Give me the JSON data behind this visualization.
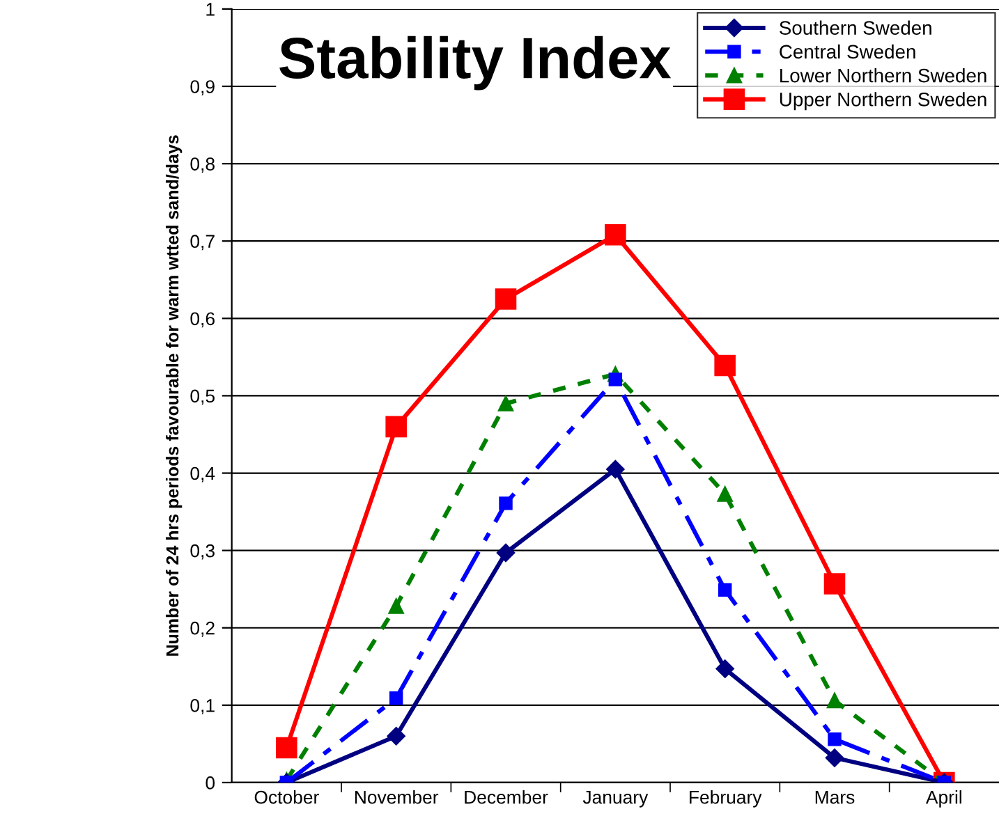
{
  "chart_data": {
    "type": "line",
    "title": "Stability Index",
    "ylabel": "Number of 24 hrs periods favourable for warm wtted sand/days",
    "categories": [
      "October",
      "November",
      "December",
      "January",
      "February",
      "Mars",
      "April"
    ],
    "series": [
      {
        "name": "Southern Sweden",
        "color": "#000080",
        "marker": "diamond",
        "line_style": "solid",
        "values": [
          0,
          0.06,
          0.297,
          0.405,
          0.147,
          0.032,
          0
        ]
      },
      {
        "name": "Central Sweden",
        "color": "#0000ff",
        "marker": "square",
        "line_style": "dashed",
        "values": [
          0,
          0.109,
          0.361,
          0.521,
          0.249,
          0.056,
          0
        ]
      },
      {
        "name": "Lower Northern Sweden",
        "color": "#008000",
        "marker": "triangle",
        "line_style": "dotted",
        "values": [
          0.003,
          0.228,
          0.49,
          0.528,
          0.373,
          0.106,
          0
        ]
      },
      {
        "name": "Upper Northern Sweden",
        "color": "#ff0000",
        "marker": "square",
        "line_style": "solid",
        "values": [
          0.045,
          0.46,
          0.625,
          0.708,
          0.539,
          0.257,
          0
        ]
      }
    ],
    "ylim": [
      0,
      1
    ],
    "yticks": [
      0,
      {
        "value": 0.1,
        "label": "0,1"
      },
      {
        "value": 0.2,
        "label": "0,2"
      },
      {
        "value": 0.3,
        "label": "0,3"
      },
      {
        "value": 0.4,
        "label": "0,4"
      },
      {
        "value": 0.5,
        "label": "0,5"
      },
      {
        "value": 0.6,
        "label": "0,6"
      },
      {
        "value": 0.7,
        "label": "0,7"
      },
      {
        "value": 0.8,
        "label": "0,8"
      },
      {
        "value": 0.9,
        "label": "0,9"
      },
      1
    ],
    "grid": "y",
    "legend": "top right"
  }
}
